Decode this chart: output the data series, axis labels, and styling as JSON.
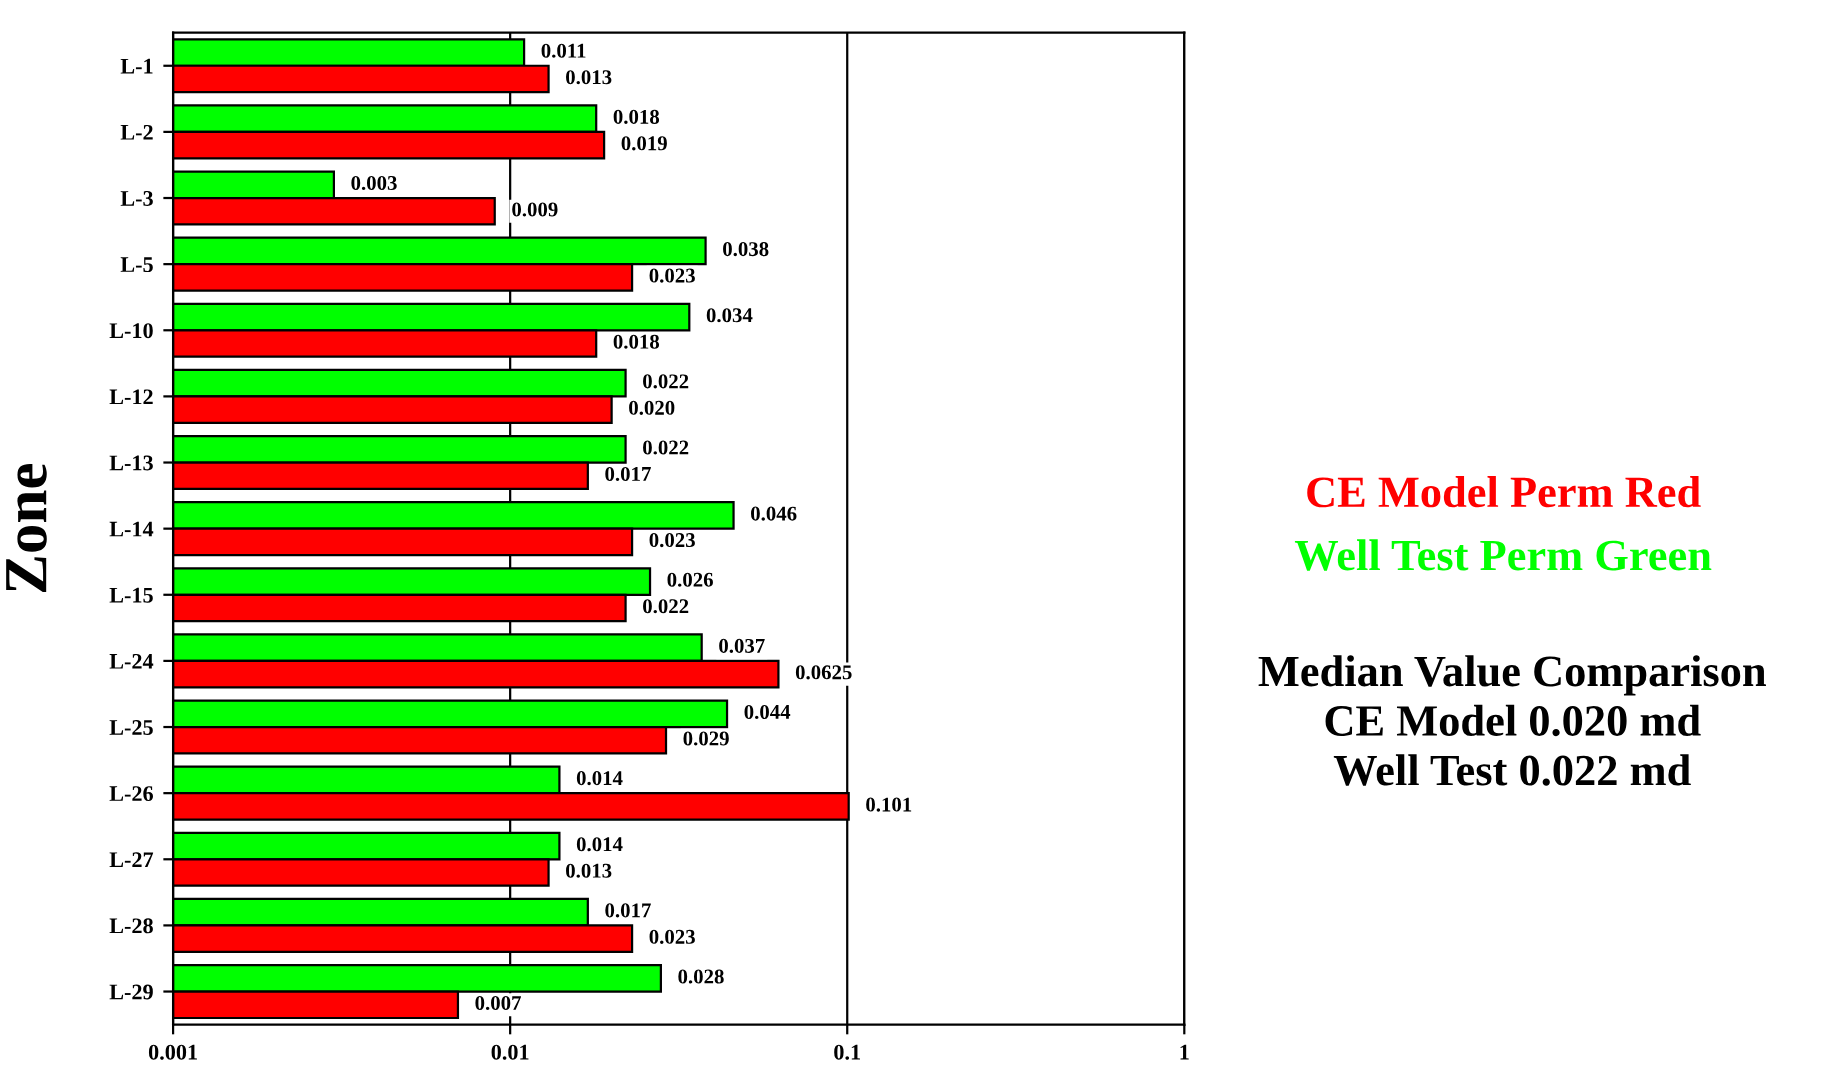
{
  "chart_data": {
    "type": "bar",
    "orientation": "horizontal",
    "ylabel": "Zone",
    "categories": [
      "L-1",
      "L-2",
      "L-3",
      "L-5",
      "L-10",
      "L-12",
      "L-13",
      "L-14",
      "L-15",
      "L-24",
      "L-25",
      "L-26",
      "L-27",
      "L-28",
      "L-29"
    ],
    "series": [
      {
        "name": "Well Test Perm Green",
        "color": "#00ff00",
        "values": [
          0.011,
          0.018,
          0.003,
          0.038,
          0.034,
          0.022,
          0.022,
          0.046,
          0.026,
          0.037,
          0.044,
          0.014,
          0.014,
          0.017,
          0.028
        ],
        "value_labels": [
          "0.011",
          "0.018",
          "0.003",
          "0.038",
          "0.034",
          "0.022",
          "0.022",
          "0.046",
          "0.026",
          "0.037",
          "0.044",
          "0.014",
          "0.014",
          "0.017",
          "0.028"
        ]
      },
      {
        "name": "CE Model Perm Red",
        "color": "#ff0000",
        "values": [
          0.013,
          0.019,
          0.009,
          0.023,
          0.018,
          0.02,
          0.017,
          0.023,
          0.022,
          0.0625,
          0.029,
          0.101,
          0.013,
          0.023,
          0.007
        ],
        "value_labels": [
          "0.013",
          "0.019",
          "0.009",
          "0.023",
          "0.018",
          "0.020",
          "0.017",
          "0.023",
          "0.022",
          "0.0625",
          "0.029",
          "0.101",
          "0.013",
          "0.023",
          "0.007"
        ]
      }
    ],
    "log": "x",
    "xlim": [
      0.001,
      1
    ],
    "xticks": [
      0.001,
      0.01,
      0.1,
      1
    ],
    "grid": "x",
    "legend": "right",
    "annotations": [
      "Median Value Comparison\nCE Model 0.020 md\nWell Test 0.022 md"
    ]
  }
}
